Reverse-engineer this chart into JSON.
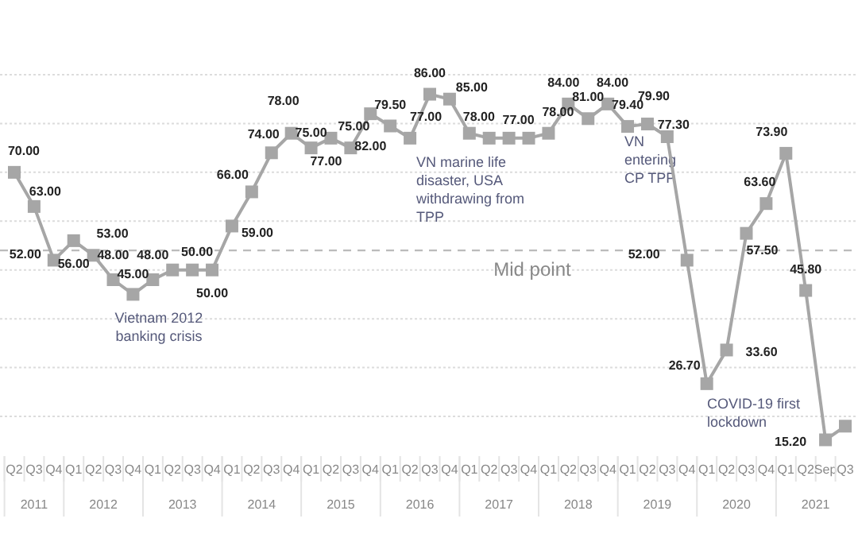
{
  "chart_data": {
    "type": "line",
    "categories": [
      "Q2",
      "Q3",
      "Q4",
      "Q1",
      "Q2",
      "Q3",
      "Q4",
      "Q1",
      "Q2",
      "Q3",
      "Q4",
      "Q1",
      "Q2",
      "Q3",
      "Q4",
      "Q1",
      "Q2",
      "Q3",
      "Q4",
      "Q1",
      "Q2",
      "Q3",
      "Q4",
      "Q1",
      "Q2",
      "Q3",
      "Q4",
      "Q1",
      "Q2",
      "Q3",
      "Q4",
      "Q1",
      "Q2",
      "Q3",
      "Q4",
      "Q1",
      "Q2",
      "Q3",
      "Q4",
      "Q1",
      "Q2",
      "Sep",
      "Q3"
    ],
    "series": [
      {
        "color": "#a6a6a6",
        "values": [
          70,
          63,
          52,
          56,
          53,
          48,
          45,
          48,
          50,
          50,
          50,
          59,
          66,
          74,
          78,
          75,
          77,
          75,
          82,
          79.5,
          77,
          86,
          85,
          78,
          77,
          77,
          77,
          78,
          84,
          81,
          84,
          79.4,
          79.9,
          77.3,
          52,
          26.7,
          33.6,
          57.5,
          63.6,
          73.9,
          45.8,
          15.2,
          18
        ],
        "value_labels": [
          "70.00",
          "63.00",
          "52.00",
          "56.00",
          "53.00",
          "48.00",
          "45.00",
          "48.00",
          null,
          "50.00",
          "50.00",
          "59.00",
          "66.00",
          "74.00",
          "78.00",
          "75.00",
          "77.00",
          "75.00",
          "82.00",
          "79.50",
          "77.00",
          "86.00",
          "85.00",
          "78.00",
          null,
          "77.00",
          null,
          "78.00",
          "84.00",
          "81.00",
          "84.00",
          "79.40",
          "79.90",
          "77.30",
          "52.00",
          "26.70",
          "33.60",
          "57.50",
          "63.60",
          "73.90",
          "45.80",
          "15.20",
          null
        ]
      }
    ],
    "yticks": [
      {
        "value": 20,
        "label": null
      },
      {
        "value": 30,
        "label": null
      },
      {
        "value": 40,
        "label": null
      },
      {
        "value": 50,
        "label": null
      },
      {
        "value": 60,
        "label": null
      },
      {
        "value": 70,
        "label": null
      },
      {
        "value": 80,
        "label": null
      },
      {
        "value": 90,
        "label": null
      }
    ],
    "grid": "y",
    "tick_labels": "x",
    "marker": "square",
    "line_style": "solid",
    "ref_lines": [
      {
        "axis": "y",
        "value": 54,
        "label": "Mid point",
        "color": "#bbbbbb",
        "line_style": "dashed"
      }
    ],
    "annotations": [
      "Vietnam 2012 banking crisis",
      "VN marine life disaster, USA withdrawing from TPP",
      "VN entering CP TPP",
      "COVID-19 first lockdown",
      "2011",
      "2012",
      "2013",
      "2014",
      "2015",
      "2016",
      "2017",
      "2018",
      "2019",
      "2020",
      "2021"
    ]
  }
}
